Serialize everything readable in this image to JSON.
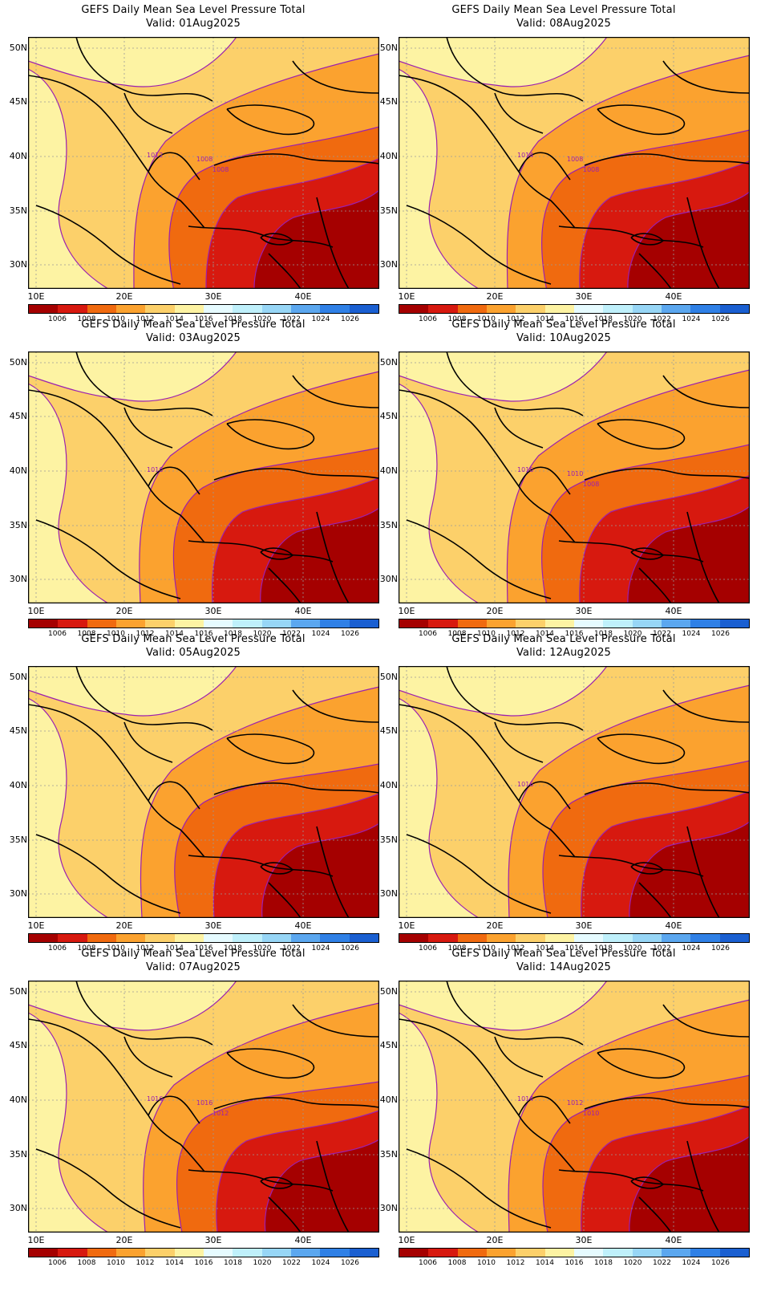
{
  "panels": [
    {
      "title": "GEFS Daily Mean Sea Level Pressure Total",
      "valid": "Valid: 01Aug2025",
      "low": 0.95,
      "labels": [
        "1012",
        "1008",
        "1008"
      ]
    },
    {
      "title": "GEFS Daily Mean Sea Level Pressure Total",
      "valid": "Valid: 08Aug2025",
      "low": 0.85,
      "labels": [
        "1014",
        "1008",
        "1008"
      ]
    },
    {
      "title": "GEFS Daily Mean Sea Level Pressure Total",
      "valid": "Valid: 03Aug2025",
      "low": 0.75,
      "labels": [
        "1016"
      ]
    },
    {
      "title": "GEFS Daily Mean Sea Level Pressure Total",
      "valid": "Valid: 10Aug2025",
      "low": 0.85,
      "labels": [
        "1016",
        "1010",
        "1008"
      ]
    },
    {
      "title": "GEFS Daily Mean Sea Level Pressure Total",
      "valid": "Valid: 05Aug2025",
      "low": 0.7,
      "labels": []
    },
    {
      "title": "GEFS Daily Mean Sea Level Pressure Total",
      "valid": "Valid: 12Aug2025",
      "low": 0.8,
      "labels": [
        "1016"
      ]
    },
    {
      "title": "GEFS Daily Mean Sea Level Pressure Total",
      "valid": "Valid: 07Aug2025",
      "low": 0.6,
      "labels": [
        "1016",
        "1016",
        "1012"
      ]
    },
    {
      "title": "GEFS Daily Mean Sea Level Pressure Total",
      "valid": "Valid: 14Aug2025",
      "low": 0.8,
      "labels": [
        "1014",
        "1012",
        "1010"
      ]
    }
  ],
  "axes": {
    "lat_labels": [
      "50N",
      "45N",
      "40N",
      "35N",
      "30N"
    ],
    "lon_labels": [
      "10E",
      "20E",
      "30E",
      "40E"
    ]
  },
  "colorbar": {
    "labels": [
      "1006",
      "1008",
      "1010",
      "1012",
      "1014",
      "1016",
      "1018",
      "1020",
      "1022",
      "1024",
      "1026"
    ],
    "colors": [
      "#a50000",
      "#d7190f",
      "#f06a0f",
      "#fba22f",
      "#fcd06a",
      "#fdf3a3",
      "#e6fbff",
      "#bff0fb",
      "#97d6f6",
      "#5ba7ef",
      "#2f80e6",
      "#1a5fd1"
    ]
  }
}
